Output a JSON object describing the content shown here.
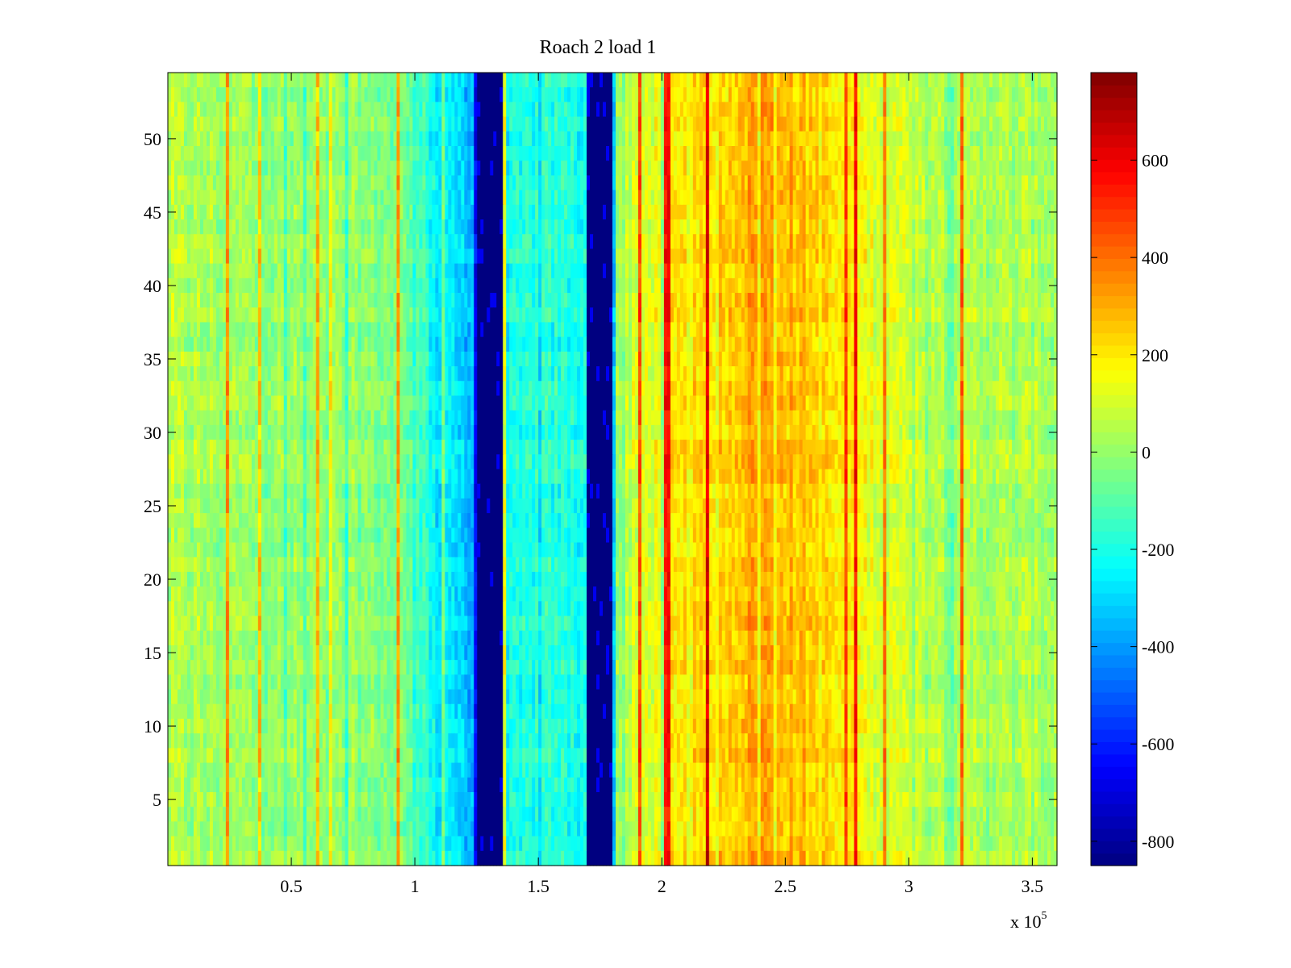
{
  "chart_data": {
    "type": "heatmap",
    "title": "Roach 2 load 1",
    "xlabel": "",
    "ylabel": "",
    "x_multiplier_label": "x 10",
    "x_multiplier_exponent": "5",
    "xlim": [
      0,
      360000
    ],
    "ylim": [
      0.5,
      54.5
    ],
    "x_ticks": [
      0.5,
      1,
      1.5,
      2,
      2.5,
      3,
      3.5
    ],
    "x_tick_labels": [
      "0.5",
      "1",
      "1.5",
      "2",
      "2.5",
      "3",
      "3.5"
    ],
    "y_ticks": [
      5,
      10,
      15,
      20,
      25,
      30,
      35,
      40,
      45,
      50
    ],
    "y_tick_labels": [
      "5",
      "10",
      "15",
      "20",
      "25",
      "30",
      "35",
      "40",
      "45",
      "50"
    ],
    "rows": 54,
    "colormap": "jet",
    "colorbar": {
      "range": [
        -850,
        780
      ],
      "ticks": [
        600,
        400,
        200,
        0,
        -200,
        -400,
        -600,
        -800
      ],
      "tick_labels": [
        "600",
        "400",
        "200",
        "0",
        "-200",
        "-400",
        "-600",
        "-800"
      ]
    },
    "column_profile": {
      "x_positions": [
        0,
        20000,
        40000,
        60000,
        80000,
        100000,
        108000,
        118000,
        124000,
        125000,
        135000,
        136000,
        150000,
        169000,
        170000,
        180000,
        181000,
        190000,
        200000,
        220000,
        240000,
        260000,
        280000,
        300000,
        320000,
        340000,
        360000
      ],
      "mean_values": [
        40,
        20,
        0,
        -10,
        -20,
        -60,
        -250,
        -300,
        -350,
        -850,
        -850,
        -250,
        -180,
        -200,
        -850,
        -850,
        0,
        100,
        150,
        230,
        320,
        250,
        150,
        80,
        50,
        30,
        30
      ]
    },
    "notes": "Dense spectrogram; two saturated dark-blue bands near x=1.3e5 and x=1.75e5, warm region 2.1e5-2.8e5."
  }
}
